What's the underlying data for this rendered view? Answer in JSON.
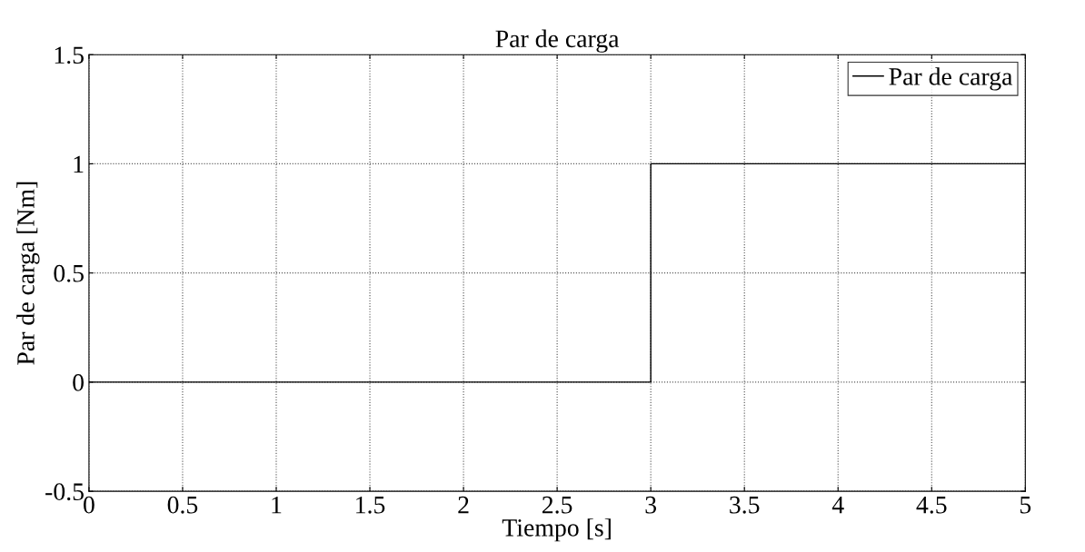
{
  "chart_data": {
    "type": "line",
    "title": "Par de carga",
    "xlabel": "Tiempo [s]",
    "ylabel": "Par de carga [Nm]",
    "x": [
      0,
      3,
      3,
      5
    ],
    "series": [
      {
        "name": "Par de carga",
        "color": "#000000",
        "values": [
          0,
          0,
          1,
          1
        ]
      }
    ],
    "xlim": [
      0,
      5
    ],
    "xticks": [
      0,
      0.5,
      1,
      1.5,
      2,
      2.5,
      3,
      3.5,
      4,
      4.5,
      5
    ],
    "ylim": [
      -0.5,
      1.5
    ],
    "yticks": [
      {
        "value": -0.5,
        "label": "-0.5"
      },
      0,
      0.5,
      1,
      1.5
    ],
    "grid": true,
    "legend": "top right",
    "line_style": "solid",
    "marker": "none"
  }
}
